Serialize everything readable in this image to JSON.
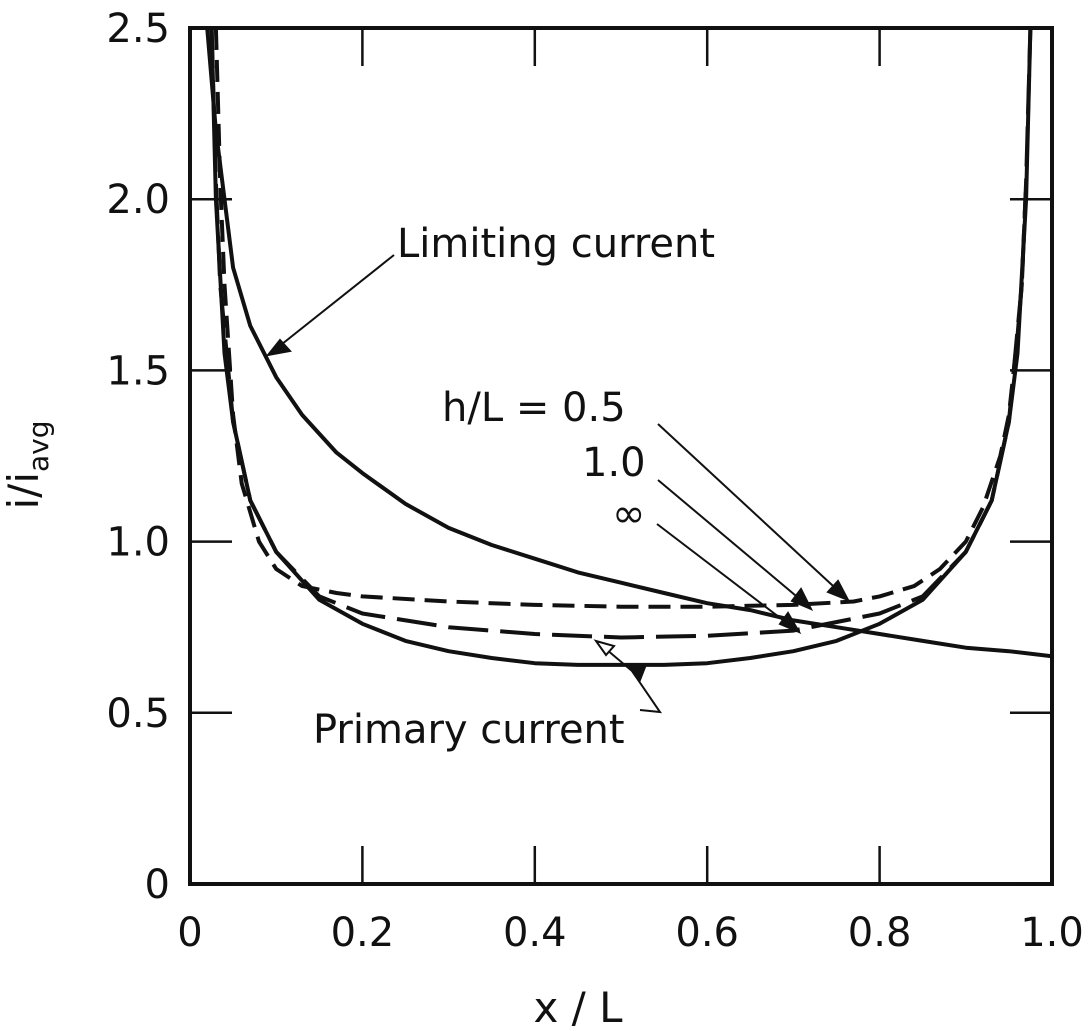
{
  "chart_data": {
    "type": "line",
    "title": "",
    "xlabel": "x / L",
    "ylabel": "i/i",
    "ylabel_sub": "avg",
    "xlim": [
      0,
      1.0
    ],
    "ylim": [
      0,
      2.5
    ],
    "xticks": [
      0,
      0.2,
      0.4,
      0.6,
      0.8,
      1.0
    ],
    "xtick_labels": [
      "0",
      "0.2",
      "0.4",
      "0.6",
      "0.8",
      "1.0"
    ],
    "yticks": [
      0,
      0.5,
      1.0,
      1.5,
      2.0,
      2.5
    ],
    "ytick_labels": [
      "0",
      "0.5",
      "1.0",
      "1.5",
      "2.0",
      "2.5"
    ],
    "grid": false,
    "series": [
      {
        "name": "Limiting current",
        "style": "solid",
        "x": [
          0.02,
          0.03,
          0.05,
          0.07,
          0.1,
          0.13,
          0.17,
          0.2,
          0.25,
          0.3,
          0.35,
          0.4,
          0.45,
          0.5,
          0.55,
          0.6,
          0.65,
          0.7,
          0.75,
          0.8,
          0.85,
          0.9,
          0.95,
          1.0
        ],
        "y": [
          2.5,
          2.2,
          1.8,
          1.63,
          1.48,
          1.37,
          1.26,
          1.2,
          1.11,
          1.04,
          0.99,
          0.95,
          0.91,
          0.88,
          0.85,
          0.82,
          0.8,
          0.77,
          0.75,
          0.73,
          0.71,
          0.69,
          0.68,
          0.665
        ]
      },
      {
        "name": "Primary current",
        "style": "solid",
        "x": [
          0.025,
          0.03,
          0.04,
          0.05,
          0.07,
          0.1,
          0.15,
          0.2,
          0.25,
          0.3,
          0.35,
          0.4,
          0.45,
          0.5,
          0.55,
          0.6,
          0.65,
          0.7,
          0.75,
          0.8,
          0.85,
          0.9,
          0.93,
          0.95,
          0.96,
          0.97,
          0.975
        ],
        "y": [
          2.5,
          2.0,
          1.55,
          1.35,
          1.12,
          0.97,
          0.83,
          0.76,
          0.71,
          0.68,
          0.66,
          0.645,
          0.64,
          0.64,
          0.64,
          0.645,
          0.66,
          0.68,
          0.71,
          0.76,
          0.83,
          0.97,
          1.12,
          1.35,
          1.55,
          2.0,
          2.5
        ]
      },
      {
        "name": "h/L = 0.5",
        "style": "dashed",
        "x": [
          0.03,
          0.035,
          0.04,
          0.05,
          0.06,
          0.08,
          0.1,
          0.13,
          0.17,
          0.2,
          0.3,
          0.4,
          0.5,
          0.6,
          0.7,
          0.77,
          0.8,
          0.84,
          0.87,
          0.9,
          0.92,
          0.94,
          0.95,
          0.96,
          0.965,
          0.97
        ],
        "y": [
          2.5,
          2.05,
          1.75,
          1.37,
          1.17,
          1.0,
          0.92,
          0.87,
          0.85,
          0.84,
          0.825,
          0.815,
          0.81,
          0.81,
          0.815,
          0.825,
          0.84,
          0.87,
          0.92,
          1.0,
          1.1,
          1.25,
          1.37,
          1.6,
          1.75,
          2.05
        ]
      },
      {
        "name": "1.0",
        "style": "dashed",
        "x": [
          0.025,
          0.03,
          0.035,
          0.05,
          0.07,
          0.1,
          0.15,
          0.2,
          0.3,
          0.4,
          0.5,
          0.6,
          0.7,
          0.8,
          0.85,
          0.9,
          0.93,
          0.95,
          0.965,
          0.97,
          0.975
        ],
        "y": [
          2.5,
          2.05,
          1.75,
          1.35,
          1.12,
          0.97,
          0.84,
          0.79,
          0.75,
          0.73,
          0.72,
          0.725,
          0.74,
          0.79,
          0.84,
          0.97,
          1.12,
          1.35,
          1.75,
          2.05,
          2.5
        ]
      }
    ],
    "annotations": {
      "limiting": "Limiting current",
      "h_05": "h/L = 0.5",
      "h_10": "1.0",
      "h_inf": "∞",
      "primary": "Primary current"
    }
  }
}
